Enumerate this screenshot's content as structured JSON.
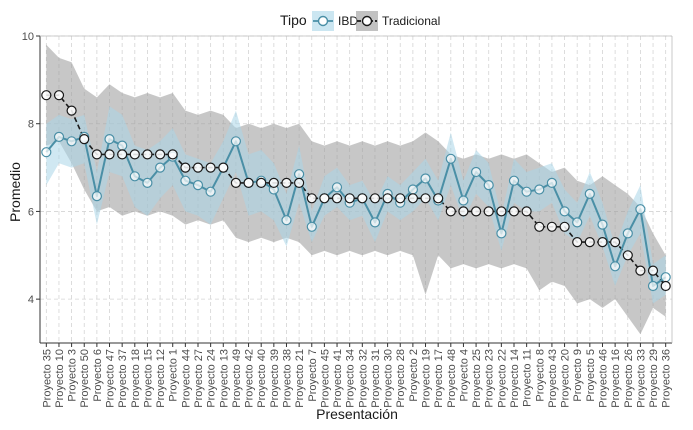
{
  "chart_data": {
    "type": "line",
    "xlabel": "Presentación",
    "ylabel": "Promedio",
    "ylim": [
      3,
      10
    ],
    "yticks": [
      4,
      6,
      8,
      10
    ],
    "grid": true,
    "legend_position": "top",
    "legend_title": "Tipo",
    "categories": [
      "Proyecto 35",
      "Proyecto 10",
      "Proyecto 3",
      "Proyecto 50",
      "Proyecto 6",
      "Proyecto 47",
      "Proyecto 37",
      "Proyecto 18",
      "Proyecto 15",
      "Proyecto 12",
      "Proyecto 1",
      "Proyecto 44",
      "Proyecto 27",
      "Proyecto 24",
      "Proyecto 13",
      "Proyecto 49",
      "Proyecto 42",
      "Proyecto 40",
      "Proyecto 39",
      "Proyecto 38",
      "Proyecto 21",
      "Proyecto 7",
      "Proyecto 45",
      "Proyecto 41",
      "Proyecto 34",
      "Proyecto 32",
      "Proyecto 31",
      "Proyecto 30",
      "Proyecto 28",
      "Proyecto 2",
      "Proyecto 19",
      "Proyecto 17",
      "Proyecto 48",
      "Proyecto 4",
      "Proyecto 25",
      "Proyecto 23",
      "Proyecto 22",
      "Proyecto 14",
      "Proyecto 11",
      "Proyecto 8",
      "Proyecto 43",
      "Proyecto 20",
      "Proyecto 9",
      "Proyecto 5",
      "Proyecto 46",
      "Proyecto 16",
      "Proyecto 26",
      "Proyecto 33",
      "Proyecto 29",
      "Proyecto 36"
    ],
    "series": [
      {
        "name": "IBD",
        "color": "#4a8fa6",
        "band_color": "#a9d6e8",
        "values": [
          7.35,
          7.7,
          7.6,
          7.7,
          6.35,
          7.65,
          7.5,
          6.8,
          6.65,
          7.0,
          7.25,
          6.7,
          6.6,
          6.45,
          7.0,
          7.6,
          6.65,
          6.7,
          6.5,
          5.8,
          6.85,
          5.65,
          6.3,
          6.55,
          6.2,
          6.3,
          5.75,
          6.4,
          6.2,
          6.5,
          6.75,
          6.25,
          7.2,
          6.25,
          6.9,
          6.6,
          5.5,
          6.7,
          6.45,
          6.5,
          6.65,
          6.0,
          5.75,
          6.4,
          5.7,
          4.75,
          5.5,
          6.05,
          4.3,
          4.5
        ],
        "lower": [
          6.6,
          7.1,
          7.0,
          7.1,
          5.7,
          6.9,
          6.8,
          6.1,
          5.9,
          6.3,
          6.6,
          6.0,
          5.9,
          5.7,
          6.3,
          6.9,
          5.9,
          6.0,
          5.8,
          5.2,
          6.2,
          5.3,
          5.9,
          6.1,
          5.8,
          5.9,
          5.3,
          6.0,
          5.8,
          6.0,
          6.3,
          5.8,
          6.6,
          5.8,
          6.4,
          6.1,
          5.1,
          6.2,
          6.0,
          6.0,
          6.2,
          5.5,
          5.3,
          5.9,
          5.2,
          4.3,
          5.0,
          5.5,
          3.9,
          4.1
        ],
        "upper": [
          8.0,
          8.2,
          8.1,
          8.2,
          6.9,
          8.4,
          8.2,
          7.5,
          7.4,
          7.6,
          7.9,
          7.3,
          7.2,
          7.1,
          7.6,
          8.3,
          7.3,
          7.4,
          7.1,
          6.4,
          7.5,
          6.0,
          6.8,
          7.0,
          6.6,
          6.7,
          6.2,
          6.8,
          6.6,
          6.9,
          7.2,
          6.7,
          7.8,
          6.7,
          7.4,
          7.1,
          5.9,
          7.2,
          6.9,
          7.0,
          7.1,
          6.5,
          6.2,
          6.9,
          6.2,
          5.2,
          6.0,
          6.6,
          4.8,
          5.0
        ]
      },
      {
        "name": "Tradicional",
        "color": "#1a1a1a",
        "band_color": "#999999",
        "values": [
          8.65,
          8.65,
          8.3,
          7.65,
          7.3,
          7.3,
          7.3,
          7.3,
          7.3,
          7.3,
          7.3,
          7.0,
          7.0,
          7.0,
          7.0,
          6.65,
          6.65,
          6.65,
          6.65,
          6.65,
          6.65,
          6.3,
          6.3,
          6.3,
          6.3,
          6.3,
          6.3,
          6.3,
          6.3,
          6.3,
          6.3,
          6.3,
          6.0,
          6.0,
          6.0,
          6.0,
          6.0,
          6.0,
          6.0,
          5.65,
          5.65,
          5.65,
          5.3,
          5.3,
          5.3,
          5.3,
          5.0,
          4.65,
          4.65,
          4.3
        ],
        "lower": [
          7.5,
          7.6,
          7.1,
          6.5,
          6.0,
          6.1,
          5.9,
          6.0,
          5.9,
          6.0,
          5.9,
          5.7,
          5.8,
          5.7,
          5.8,
          5.4,
          5.3,
          5.4,
          5.3,
          5.4,
          5.3,
          5.0,
          5.1,
          5.0,
          5.1,
          5.0,
          5.1,
          5.0,
          5.1,
          5.0,
          4.1,
          5.0,
          4.7,
          4.8,
          4.7,
          4.8,
          4.7,
          4.8,
          4.7,
          4.2,
          4.4,
          4.3,
          3.9,
          4.0,
          3.8,
          4.0,
          3.6,
          3.2,
          3.8,
          3.6
        ],
        "upper": [
          9.8,
          9.5,
          9.4,
          8.8,
          8.6,
          8.9,
          8.7,
          8.6,
          8.7,
          8.6,
          8.7,
          8.3,
          8.2,
          8.3,
          8.2,
          7.9,
          8.0,
          7.9,
          8.0,
          7.9,
          8.0,
          7.6,
          7.5,
          7.6,
          7.5,
          7.6,
          7.5,
          7.6,
          7.5,
          7.6,
          7.8,
          7.6,
          7.3,
          7.2,
          7.3,
          7.2,
          7.3,
          7.2,
          7.3,
          7.1,
          6.9,
          7.0,
          6.7,
          6.6,
          6.8,
          6.6,
          6.4,
          6.1,
          5.5,
          5.0
        ]
      }
    ]
  }
}
